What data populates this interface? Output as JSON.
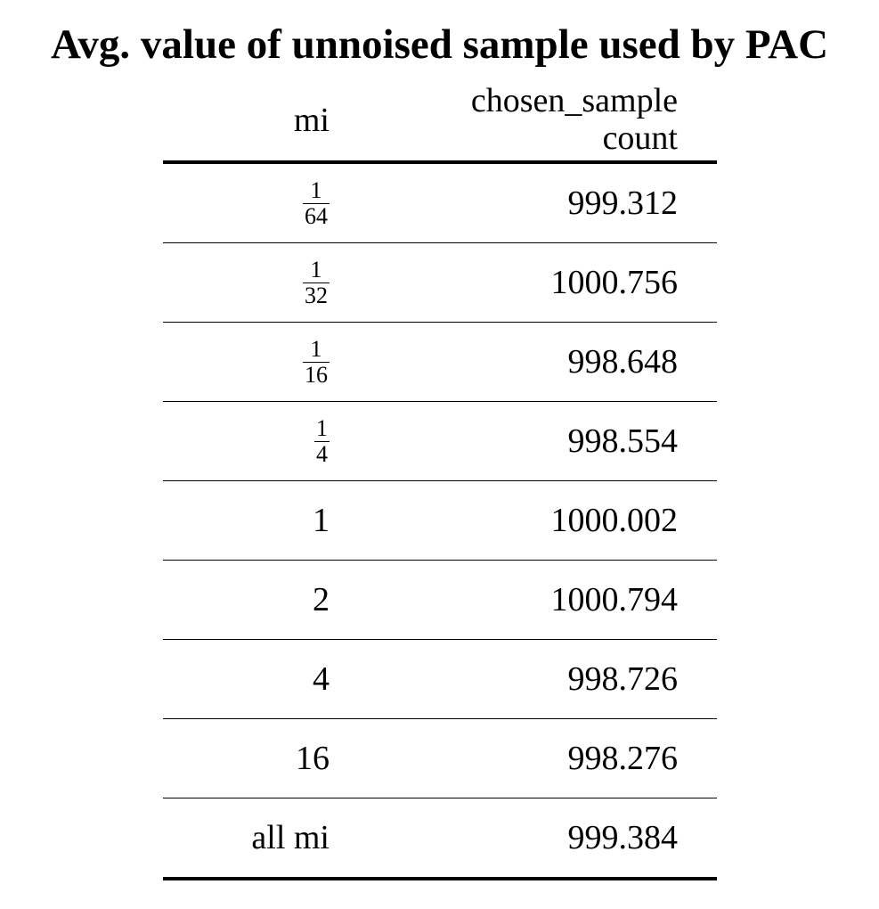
{
  "title": "Avg. value of unnoised sample used by PAC",
  "chart_data": {
    "type": "table",
    "title": "Avg. value of unnoised sample used by PAC",
    "columns": [
      "mi",
      "chosen_sample count"
    ],
    "header": {
      "mi": "mi",
      "count_line1": "chosen_sample",
      "count_line2": "count"
    },
    "rows": [
      {
        "mi": "1/64",
        "mi_num": "1",
        "mi_den": "64",
        "value": 999.312,
        "value_text": "999.312"
      },
      {
        "mi": "1/32",
        "mi_num": "1",
        "mi_den": "32",
        "value": 1000.756,
        "value_text": "1000.756"
      },
      {
        "mi": "1/16",
        "mi_num": "1",
        "mi_den": "16",
        "value": 998.648,
        "value_text": "998.648"
      },
      {
        "mi": "1/4",
        "mi_num": "1",
        "mi_den": "4",
        "value": 998.554,
        "value_text": "998.554"
      },
      {
        "mi": "1",
        "value": 1000.002,
        "value_text": "1000.002"
      },
      {
        "mi": "2",
        "value": 1000.794,
        "value_text": "1000.794"
      },
      {
        "mi": "4",
        "value": 998.726,
        "value_text": "998.726"
      },
      {
        "mi": "16",
        "value": 998.276,
        "value_text": "998.276"
      },
      {
        "mi": "all mi",
        "value": 999.384,
        "value_text": "999.384"
      }
    ]
  }
}
